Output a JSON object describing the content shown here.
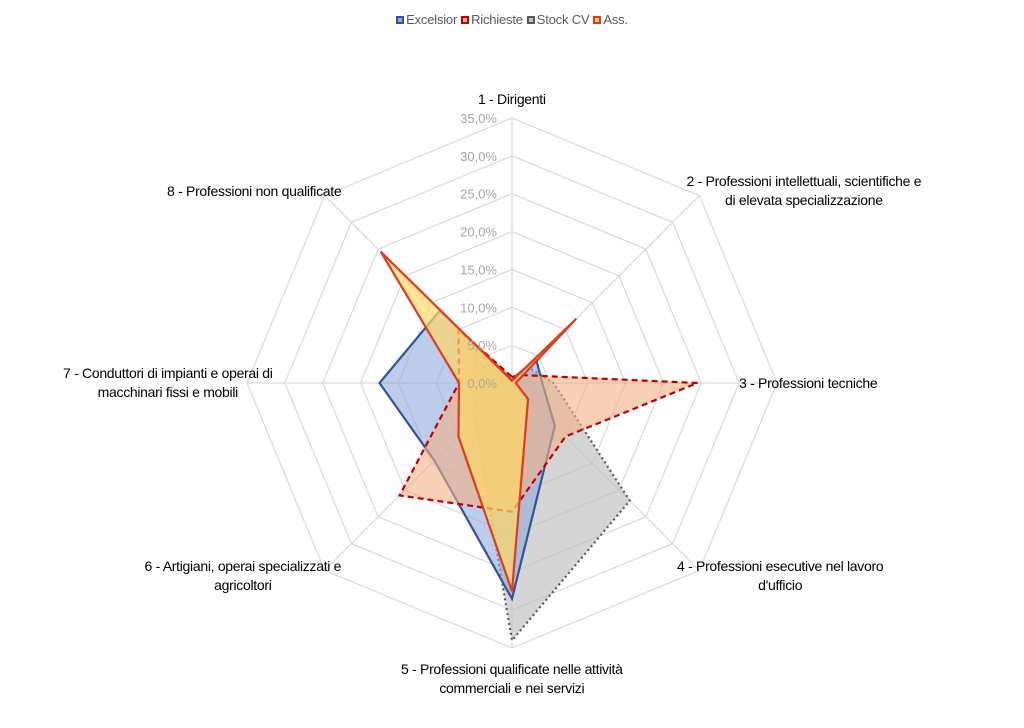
{
  "chart_data": {
    "type": "radar",
    "categories": [
      "1 - Dirigenti",
      "2 - Professioni intellettuali, scientifiche e di elevata specializzazione",
      "3 - Professioni tecniche",
      "4 - Professioni esecutive nel lavoro d'ufficio",
      "5 - Professioni qualificate nelle attività commerciali e nei servizi",
      "6 - Artigiani, operai specializzati e agricoltori",
      "7 - Conduttori di impianti e operai di macchinari fissi e mobili",
      "8 - Professioni non qualificate"
    ],
    "category_lines": [
      [
        "1 - Dirigenti"
      ],
      [
        "2 - Professioni intellettuali, scientifiche e",
        "di elevata specializzazione"
      ],
      [
        "3 - Professioni tecniche"
      ],
      [
        "4 - Professioni esecutive nel lavoro",
        "d'ufficio"
      ],
      [
        "5 - Professioni qualificate nelle attività",
        "commerciali e nei servizi"
      ],
      [
        "6 - Artigiani, operai specializzati e",
        "agricoltori"
      ],
      [
        "7 - Conduttori di impianti e operai di",
        "macchinari fissi e mobili"
      ],
      [
        "8 - Professioni non qualificate"
      ]
    ],
    "ticks": [
      "0,0%",
      "5,0%",
      "10,0%",
      "15,0%",
      "20,0%",
      "25,0%",
      "30,0%",
      "35,0%"
    ],
    "rmax": 35,
    "series": [
      {
        "name": "Stock CV",
        "values": [
          0.3,
          3.0,
          5.5,
          22.0,
          34.0,
          7.0,
          5.0,
          7.0
        ],
        "fill": "#bfbfbf",
        "fill_opacity": 0.65,
        "stroke": "#595959",
        "dash": "2,3"
      },
      {
        "name": "Excelsior",
        "values": [
          0.5,
          4.5,
          4.0,
          8.0,
          28.5,
          14.5,
          17.5,
          13.5
        ],
        "fill": "#8faadc",
        "fill_opacity": 0.6,
        "stroke": "#2f5597",
        "dash": ""
      },
      {
        "name": "Richieste",
        "values": [
          0.8,
          1.5,
          24.5,
          10.0,
          17.0,
          21.0,
          7.0,
          10.0
        ],
        "fill": "#f4b183",
        "fill_opacity": 0.6,
        "stroke": "#c00000",
        "dash": "6,4"
      },
      {
        "name": "Ass.",
        "values": [
          0.3,
          12.0,
          0.5,
          3.0,
          27.5,
          10.0,
          7.0,
          24.5
        ],
        "fill": "#ffd966",
        "fill_opacity": 0.7,
        "stroke": "#e03c1c",
        "dash": ""
      }
    ],
    "legend": [
      {
        "name": "Excelsior",
        "fill": "#8faadc",
        "stroke": "#2f5597"
      },
      {
        "name": "Richieste",
        "fill": "#f4b183",
        "stroke": "#c00000"
      },
      {
        "name": "Stock CV",
        "fill": "#bfbfbf",
        "stroke": "#595959"
      },
      {
        "name": "Ass.",
        "fill": "#ffd966",
        "stroke": "#e03c1c"
      }
    ],
    "legend_position": "top",
    "grid": true
  }
}
